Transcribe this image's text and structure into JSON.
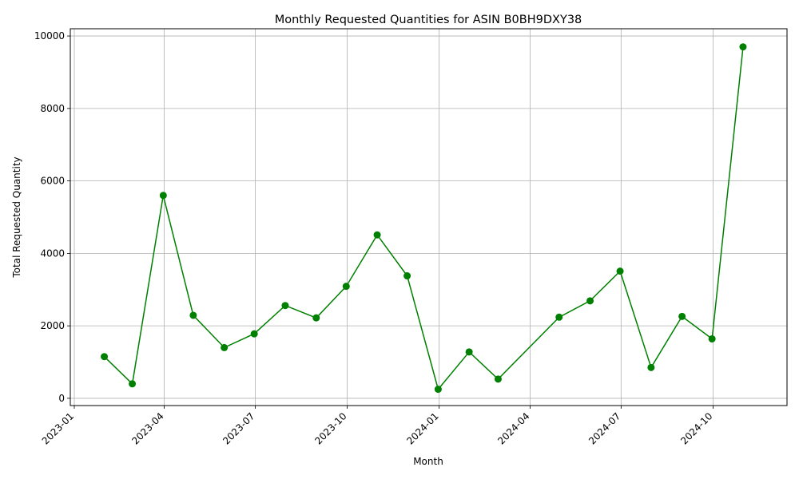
{
  "chart_data": {
    "type": "line",
    "title": "Monthly Requested Quantities for ASIN B0BH9DXY38",
    "xlabel": "Month",
    "ylabel": "Total Requested Quantity",
    "grid": true,
    "color": "#008000",
    "marker": "circle",
    "xlim": [
      "2022-12-28",
      "2024-12-14"
    ],
    "ylim": [
      -200,
      10200
    ],
    "x_ticks": [
      "2023-01",
      "2023-04",
      "2023-07",
      "2023-10",
      "2024-01",
      "2024-04",
      "2024-07",
      "2024-10"
    ],
    "y_ticks": [
      0,
      2000,
      4000,
      6000,
      8000,
      10000
    ],
    "series": [
      {
        "x": [
          "2023-01-31",
          "2023-02-28",
          "2023-03-31",
          "2023-04-30",
          "2023-05-31",
          "2023-06-30",
          "2023-07-31",
          "2023-08-31",
          "2023-09-30",
          "2023-10-31",
          "2023-11-30",
          "2023-12-31",
          "2024-01-31",
          "2024-02-29",
          "2024-04-30",
          "2024-05-31",
          "2024-06-30",
          "2024-07-31",
          "2024-08-31",
          "2024-09-30",
          "2024-10-31"
        ],
        "values": [
          1150,
          400,
          5600,
          2290,
          1400,
          1780,
          2560,
          2220,
          3090,
          4510,
          3380,
          250,
          1280,
          530,
          2240,
          2690,
          3510,
          850,
          2260,
          1640,
          9700
        ]
      }
    ]
  }
}
